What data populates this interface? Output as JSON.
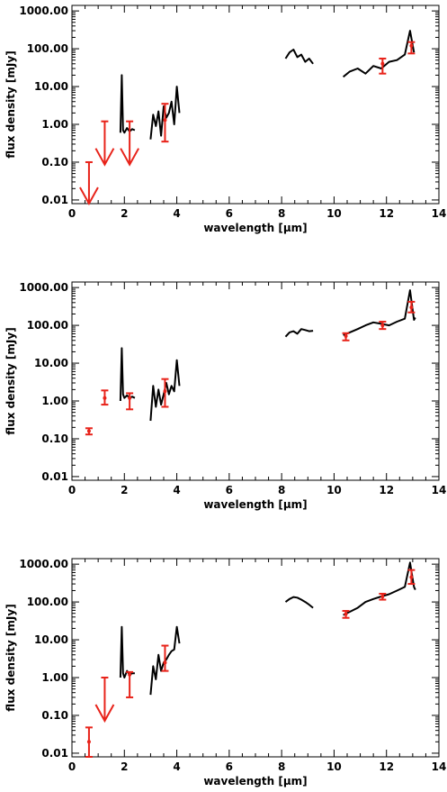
{
  "chart_data": [
    {
      "type": "scatter",
      "xlabel": "wavelength [µm]",
      "ylabel": "flux density [mJy]",
      "xlim": [
        0,
        14
      ],
      "ylim": [
        0.008,
        1400
      ],
      "yscale": "log",
      "xticks": [
        "0",
        "2",
        "4",
        "6",
        "8",
        "10",
        "12",
        "14"
      ],
      "yticks": [
        "0.01",
        "0.10",
        "1.00",
        "10.00",
        "100.00",
        "1000.00"
      ],
      "grid": false,
      "series": [
        {
          "kind": "spectrum",
          "color": "#000000",
          "segments": [
            {
              "x": [
                1.85,
                1.9,
                1.95,
                2.0,
                2.1,
                2.2,
                2.3,
                2.4
              ],
              "y": [
                0.6,
                20,
                0.7,
                0.6,
                0.8,
                0.65,
                0.75,
                0.7
              ]
            },
            {
              "x": [
                3.0,
                3.1,
                3.2,
                3.3,
                3.4,
                3.5,
                3.6,
                3.7,
                3.8,
                3.9,
                4.0,
                4.1
              ],
              "y": [
                0.4,
                1.8,
                0.9,
                2.2,
                0.5,
                3.0,
                1.5,
                2.0,
                4.0,
                1.0,
                10,
                2.0
              ]
            },
            {
              "x": [
                8.15,
                8.3,
                8.45,
                8.6,
                8.75,
                8.9,
                9.05,
                9.2
              ],
              "y": [
                55,
                80,
                95,
                60,
                70,
                45,
                55,
                40
              ]
            },
            {
              "x": [
                10.35,
                10.6,
                10.9,
                11.2,
                11.5,
                11.8,
                12.1,
                12.4,
                12.7,
                12.9,
                13.05
              ],
              "y": [
                18,
                25,
                30,
                22,
                35,
                30,
                45,
                50,
                70,
                300,
                80
              ]
            }
          ]
        },
        {
          "kind": "errorbars",
          "color": "#e8231a",
          "points": [
            {
              "x": 3.55,
              "y": 1.3,
              "ylo": 0.35,
              "yhi": 3.5
            },
            {
              "x": 11.85,
              "y": 40,
              "ylo": 22,
              "yhi": 55
            },
            {
              "x": 12.95,
              "y": 120,
              "ylo": 75,
              "yhi": 150
            }
          ]
        },
        {
          "kind": "upper-limits",
          "color": "#e8231a",
          "points": [
            {
              "x": 0.65,
              "y": 0.1
            },
            {
              "x": 1.25,
              "y": 1.2
            },
            {
              "x": 2.2,
              "y": 1.2
            }
          ]
        }
      ]
    },
    {
      "type": "scatter",
      "xlabel": "wavelength [µm]",
      "ylabel": "flux density [mJy]",
      "xlim": [
        0,
        14
      ],
      "ylim": [
        0.008,
        1400
      ],
      "yscale": "log",
      "xticks": [
        "0",
        "2",
        "4",
        "6",
        "8",
        "10",
        "12",
        "14"
      ],
      "yticks": [
        "0.01",
        "0.10",
        "1.00",
        "10.00",
        "100.00",
        "1000.00"
      ],
      "grid": false,
      "series": [
        {
          "kind": "spectrum",
          "color": "#000000",
          "segments": [
            {
              "x": [
                1.85,
                1.9,
                1.95,
                2.0,
                2.1,
                2.2,
                2.3,
                2.4
              ],
              "y": [
                1.0,
                25,
                1.5,
                1.2,
                1.4,
                1.2,
                1.3,
                1.2
              ]
            },
            {
              "x": [
                3.0,
                3.1,
                3.2,
                3.3,
                3.4,
                3.5,
                3.6,
                3.7,
                3.8,
                3.9,
                4.0,
                4.1
              ],
              "y": [
                0.3,
                2.5,
                0.7,
                2.0,
                0.8,
                1.5,
                3.0,
                1.5,
                2.5,
                1.8,
                12,
                2.5
              ]
            },
            {
              "x": [
                8.15,
                8.3,
                8.45,
                8.6,
                8.75,
                8.9,
                9.05,
                9.2
              ],
              "y": [
                50,
                65,
                70,
                60,
                80,
                75,
                70,
                72
              ]
            },
            {
              "x": [
                10.35,
                10.6,
                10.9,
                11.2,
                11.5,
                11.8,
                12.1,
                12.4,
                12.7,
                12.9,
                13.05,
                13.1
              ],
              "y": [
                55,
                65,
                80,
                100,
                120,
                110,
                100,
                125,
                150,
                850,
                140,
                160
              ]
            }
          ]
        },
        {
          "kind": "errorbars",
          "color": "#e8231a",
          "points": [
            {
              "x": 0.65,
              "y": 0.16,
              "ylo": 0.13,
              "yhi": 0.19
            },
            {
              "x": 1.25,
              "y": 1.2,
              "ylo": 0.8,
              "yhi": 1.9
            },
            {
              "x": 2.2,
              "y": 1.2,
              "ylo": 0.6,
              "yhi": 1.6
            },
            {
              "x": 3.55,
              "y": 1.8,
              "ylo": 0.7,
              "yhi": 3.8
            },
            {
              "x": 10.45,
              "y": 52,
              "ylo": 40,
              "yhi": 62
            },
            {
              "x": 11.85,
              "y": 100,
              "ylo": 80,
              "yhi": 125
            },
            {
              "x": 12.95,
              "y": 300,
              "ylo": 220,
              "yhi": 420
            }
          ]
        }
      ]
    },
    {
      "type": "scatter",
      "xlabel": "wavelength [µm]",
      "ylabel": "flux density [mJy]",
      "xlim": [
        0,
        14
      ],
      "ylim": [
        0.008,
        1400
      ],
      "yscale": "log",
      "xticks": [
        "0",
        "2",
        "4",
        "6",
        "8",
        "10",
        "12",
        "14"
      ],
      "yticks": [
        "0.01",
        "0.10",
        "1.00",
        "10.00",
        "100.00",
        "1000.00"
      ],
      "grid": false,
      "series": [
        {
          "kind": "spectrum",
          "color": "#000000",
          "segments": [
            {
              "x": [
                1.85,
                1.9,
                1.95,
                2.0,
                2.1,
                2.2,
                2.3,
                2.4
              ],
              "y": [
                1.0,
                22,
                1.3,
                1.0,
                1.5,
                1.2,
                1.3,
                1.3
              ]
            },
            {
              "x": [
                3.0,
                3.1,
                3.2,
                3.3,
                3.4,
                3.5,
                3.6,
                3.7,
                3.8,
                3.9,
                4.0,
                4.1
              ],
              "y": [
                0.35,
                2.0,
                0.9,
                4.0,
                1.5,
                2.5,
                3.0,
                4.0,
                5.0,
                5.5,
                22,
                8.0
              ]
            },
            {
              "x": [
                8.15,
                8.3,
                8.45,
                8.6,
                8.75,
                8.9,
                9.05,
                9.2
              ],
              "y": [
                100,
                120,
                135,
                130,
                115,
                100,
                85,
                70
              ]
            },
            {
              "x": [
                10.35,
                10.6,
                10.9,
                11.2,
                11.5,
                11.8,
                12.1,
                12.4,
                12.7,
                12.9,
                13.05,
                13.1
              ],
              "y": [
                45,
                55,
                70,
                100,
                120,
                140,
                160,
                200,
                250,
                1100,
                250,
                210
              ]
            }
          ]
        },
        {
          "kind": "errorbars",
          "color": "#e8231a",
          "points": [
            {
              "x": 0.65,
              "y": 0.02,
              "ylo": 0.008,
              "yhi": 0.048
            },
            {
              "x": 2.2,
              "y": 1.2,
              "ylo": 0.3,
              "yhi": 1.4
            },
            {
              "x": 3.55,
              "y": 2.5,
              "ylo": 1.5,
              "yhi": 7.0
            },
            {
              "x": 10.45,
              "y": 48,
              "ylo": 38,
              "yhi": 58
            },
            {
              "x": 11.85,
              "y": 140,
              "ylo": 115,
              "yhi": 165
            },
            {
              "x": 12.95,
              "y": 450,
              "ylo": 300,
              "yhi": 700
            }
          ]
        },
        {
          "kind": "upper-limits",
          "color": "#e8231a",
          "points": [
            {
              "x": 1.25,
              "y": 1.0
            }
          ]
        }
      ]
    }
  ]
}
